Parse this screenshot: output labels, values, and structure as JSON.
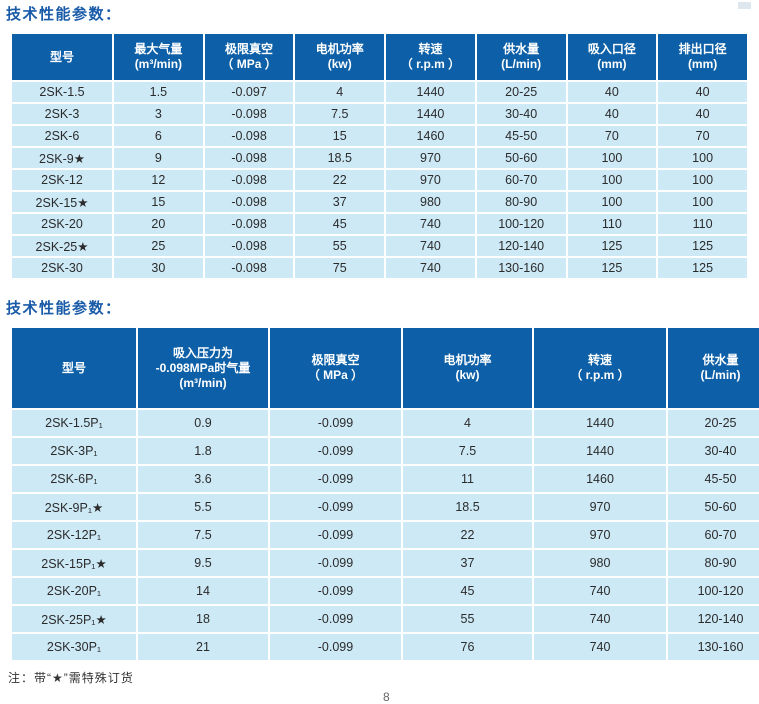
{
  "page": {
    "section1_title": "技术性能参数：",
    "section2_title": "技术性能参数：",
    "footnote": "注：带“★”需特殊订货",
    "page_number": "8"
  },
  "colors": {
    "header_bg": "#0d60a8",
    "row_bg": "#cde9f6",
    "title_text": "#1a5ba8"
  },
  "table1": {
    "headers": [
      [
        "型号"
      ],
      [
        "最大气量",
        "(m³/min)"
      ],
      [
        "极限真空",
        "（ MPa ）"
      ],
      [
        "电机功率",
        "(kw)"
      ],
      [
        "转速",
        "（ r.p.m ）"
      ],
      [
        "供水量",
        "(L/min)"
      ],
      [
        "吸入口径",
        "(mm)"
      ],
      [
        "排出口径",
        "(mm)"
      ]
    ],
    "rows": [
      [
        "2SK-1.5",
        "1.5",
        "-0.097",
        "4",
        "1440",
        "20-25",
        "40",
        "40"
      ],
      [
        "2SK-3",
        "3",
        "-0.098",
        "7.5",
        "1440",
        "30-40",
        "40",
        "40"
      ],
      [
        "2SK-6",
        "6",
        "-0.098",
        "15",
        "1460",
        "45-50",
        "70",
        "70"
      ],
      [
        "2SK-9★",
        "9",
        "-0.098",
        "18.5",
        "970",
        "50-60",
        "100",
        "100"
      ],
      [
        "2SK-12",
        "12",
        "-0.098",
        "22",
        "970",
        "60-70",
        "100",
        "100"
      ],
      [
        "2SK-15★",
        "15",
        "-0.098",
        "37",
        "980",
        "80-90",
        "100",
        "100"
      ],
      [
        "2SK-20",
        "20",
        "-0.098",
        "45",
        "740",
        "100-120",
        "110",
        "110"
      ],
      [
        "2SK-25★",
        "25",
        "-0.098",
        "55",
        "740",
        "120-140",
        "125",
        "125"
      ],
      [
        "2SK-30",
        "30",
        "-0.098",
        "75",
        "740",
        "130-160",
        "125",
        "125"
      ]
    ]
  },
  "table2": {
    "headers": [
      [
        "型号"
      ],
      [
        "吸入压力为",
        "-0.098MPa时气量",
        "(m³/min)"
      ],
      [
        "极限真空",
        "（ MPa ）"
      ],
      [
        "电机功率",
        "(kw)"
      ],
      [
        "转速",
        "（ r.p.m ）"
      ],
      [
        "供水量",
        "(L/min)"
      ]
    ],
    "rows": [
      [
        "2SK-1.5P₁",
        "0.9",
        "-0.099",
        "4",
        "1440",
        "20-25"
      ],
      [
        "2SK-3P₁",
        "1.8",
        "-0.099",
        "7.5",
        "1440",
        "30-40"
      ],
      [
        "2SK-6P₁",
        "3.6",
        "-0.099",
        "11",
        "1460",
        "45-50"
      ],
      [
        "2SK-9P₁★",
        "5.5",
        "-0.099",
        "18.5",
        "970",
        "50-60"
      ],
      [
        "2SK-12P₁",
        "7.5",
        "-0.099",
        "22",
        "970",
        "60-70"
      ],
      [
        "2SK-15P₁★",
        "9.5",
        "-0.099",
        "37",
        "980",
        "80-90"
      ],
      [
        "2SK-20P₁",
        "14",
        "-0.099",
        "45",
        "740",
        "100-120"
      ],
      [
        "2SK-25P₁★",
        "18",
        "-0.099",
        "55",
        "740",
        "120-140"
      ],
      [
        "2SK-30P₁",
        "21",
        "-0.099",
        "76",
        "740",
        "130-160"
      ]
    ]
  }
}
